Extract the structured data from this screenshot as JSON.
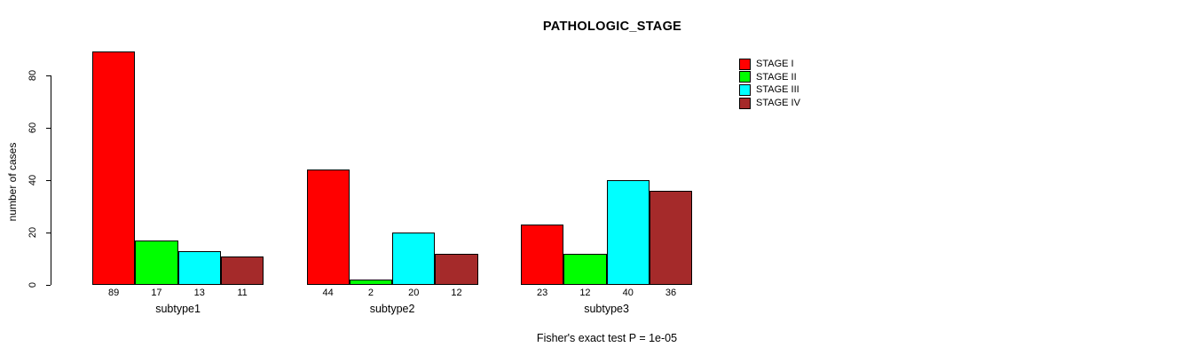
{
  "chart_data": {
    "type": "bar",
    "title": "PATHOLOGIC_STAGE",
    "ylabel": "number of cases",
    "xlabel": "",
    "annotation": "Fisher's exact test P = 1e-05",
    "categories": [
      "subtype1",
      "subtype2",
      "subtype3"
    ],
    "series": [
      {
        "name": "STAGE I",
        "color": "#FF0000",
        "values": [
          89,
          44,
          23
        ]
      },
      {
        "name": "STAGE II",
        "color": "#00FF00",
        "values": [
          17,
          2,
          12
        ]
      },
      {
        "name": "STAGE III",
        "color": "#00FFFF",
        "values": [
          13,
          20,
          40
        ]
      },
      {
        "name": "STAGE IV",
        "color": "#A52A2A",
        "values": [
          11,
          12,
          36
        ]
      }
    ],
    "yticks": [
      0,
      20,
      40,
      60,
      80
    ],
    "ylim": [
      0,
      89
    ],
    "grid": false,
    "legend_position": "top-right",
    "bar_value_labels": true
  },
  "colors": {
    "background": "#FFFFFF",
    "axis": "#000000",
    "text": "#000000"
  }
}
